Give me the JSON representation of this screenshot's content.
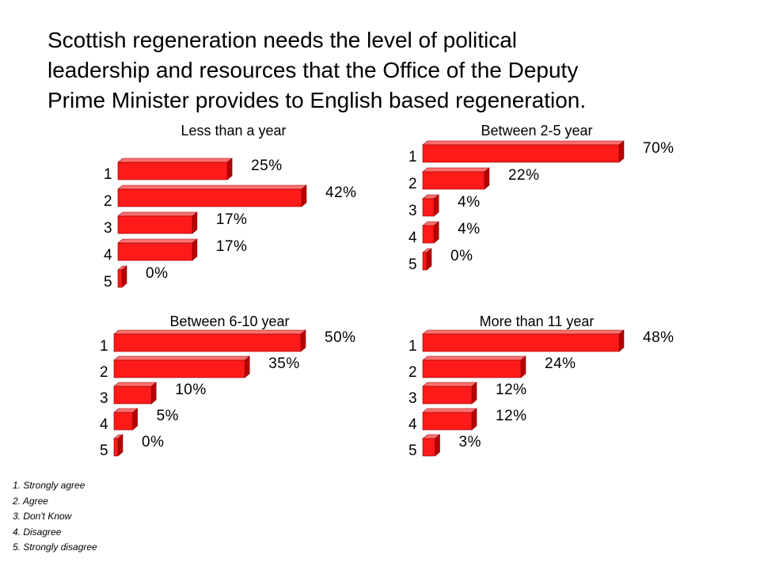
{
  "title": {
    "lines": [
      "Scottish regeneration needs the level of political",
      "leadership and resources that the Office of the Deputy",
      "Prime Minister provides to English based regeneration."
    ]
  },
  "legend": [
    "1. Strongly agree",
    "2. Agree",
    "3. Don't Know",
    "4. Disagree",
    "5. Strongly disagree"
  ],
  "colors": {
    "bar_front": "#ff1a1a",
    "bar_top": "#ff7070",
    "bar_side": "#b80000",
    "outline": "#8a0000"
  },
  "chart_data": [
    {
      "type": "bar",
      "orientation": "horizontal",
      "title": "Less than a year",
      "categories": [
        "1",
        "2",
        "3",
        "4",
        "5"
      ],
      "values": [
        25,
        42,
        17,
        17,
        0
      ],
      "value_labels": [
        "25%",
        "42%",
        "17%",
        "17%",
        "0%"
      ],
      "xlim": [
        0,
        42
      ],
      "grid": false
    },
    {
      "type": "bar",
      "orientation": "horizontal",
      "title": "Between 2-5 year",
      "categories": [
        "1",
        "2",
        "3",
        "4",
        "5"
      ],
      "values": [
        70,
        22,
        4,
        4,
        0
      ],
      "value_labels": [
        "70%",
        "22%",
        "4%",
        "4%",
        "0%"
      ],
      "xlim": [
        0,
        70
      ],
      "grid": false
    },
    {
      "type": "bar",
      "orientation": "horizontal",
      "title": "Between 6-10 year",
      "categories": [
        "1",
        "2",
        "3",
        "4",
        "5"
      ],
      "values": [
        50,
        35,
        10,
        5,
        0
      ],
      "value_labels": [
        "50%",
        "35%",
        "10%",
        "5%",
        "0%"
      ],
      "xlim": [
        0,
        50
      ],
      "grid": false
    },
    {
      "type": "bar",
      "orientation": "horizontal",
      "title": "More than 11 year",
      "categories": [
        "1",
        "2",
        "3",
        "4",
        "5"
      ],
      "values": [
        48,
        24,
        12,
        12,
        3
      ],
      "value_labels": [
        "48%",
        "24%",
        "12%",
        "12%",
        "3%"
      ],
      "xlim": [
        0,
        48
      ],
      "grid": false
    }
  ]
}
